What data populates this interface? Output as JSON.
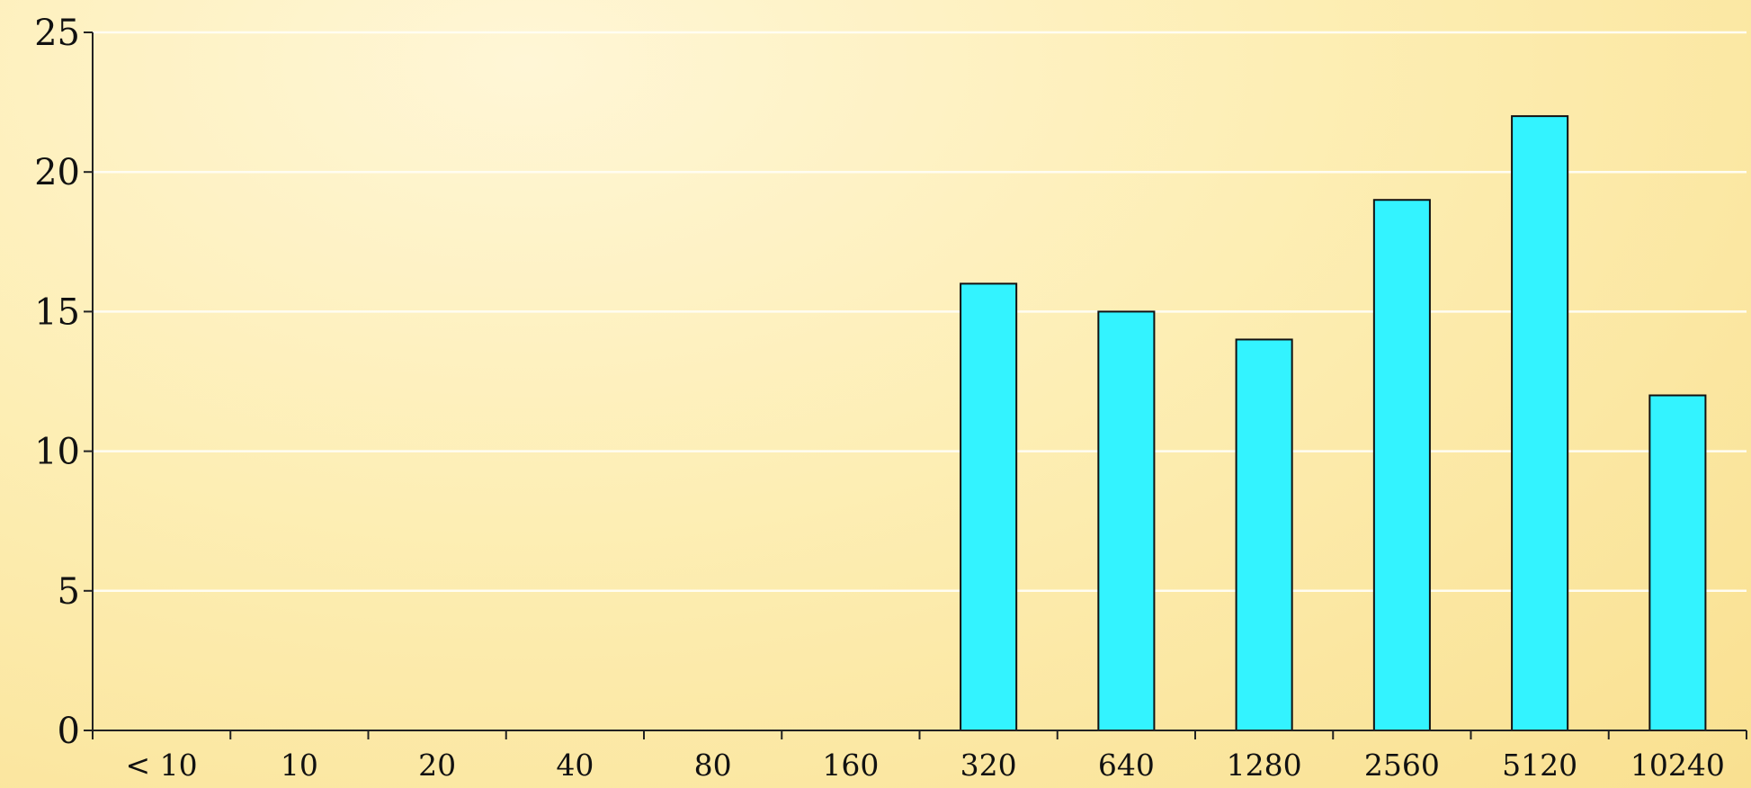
{
  "chart_data": {
    "type": "bar",
    "title": "",
    "xlabel": "",
    "ylabel": "",
    "categories": [
      "< 10",
      "10",
      "20",
      "40",
      "80",
      "160",
      "320",
      "640",
      "1280",
      "2560",
      "5120",
      "10240"
    ],
    "values": [
      0,
      0,
      0,
      0,
      0,
      0,
      16,
      15,
      14,
      19,
      22,
      12
    ],
    "ylim": [
      0,
      25
    ],
    "yticks": [
      0,
      5,
      10,
      15,
      20,
      25
    ],
    "grid": true,
    "legend": "none",
    "colors": {
      "bar_fill": "#33f3ff",
      "bar_stroke": "#111111",
      "gridline": "#fffdf2",
      "axis": "#222222"
    }
  }
}
